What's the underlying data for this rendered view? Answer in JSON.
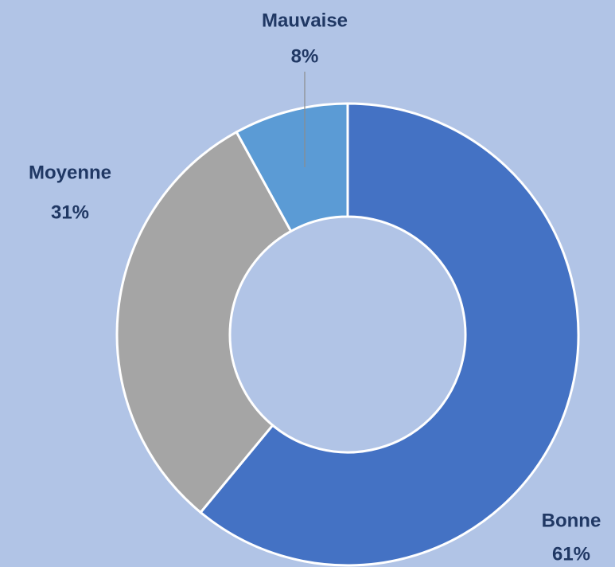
{
  "chart_data": {
    "type": "donut",
    "categories": [
      "Bonne",
      "Moyenne",
      "Mauvaise"
    ],
    "values": [
      61,
      31,
      8
    ],
    "value_labels": [
      "61%",
      "31%",
      "8%"
    ],
    "colors": [
      "#4472c4",
      "#a5a5a5",
      "#5b9bd5"
    ]
  }
}
